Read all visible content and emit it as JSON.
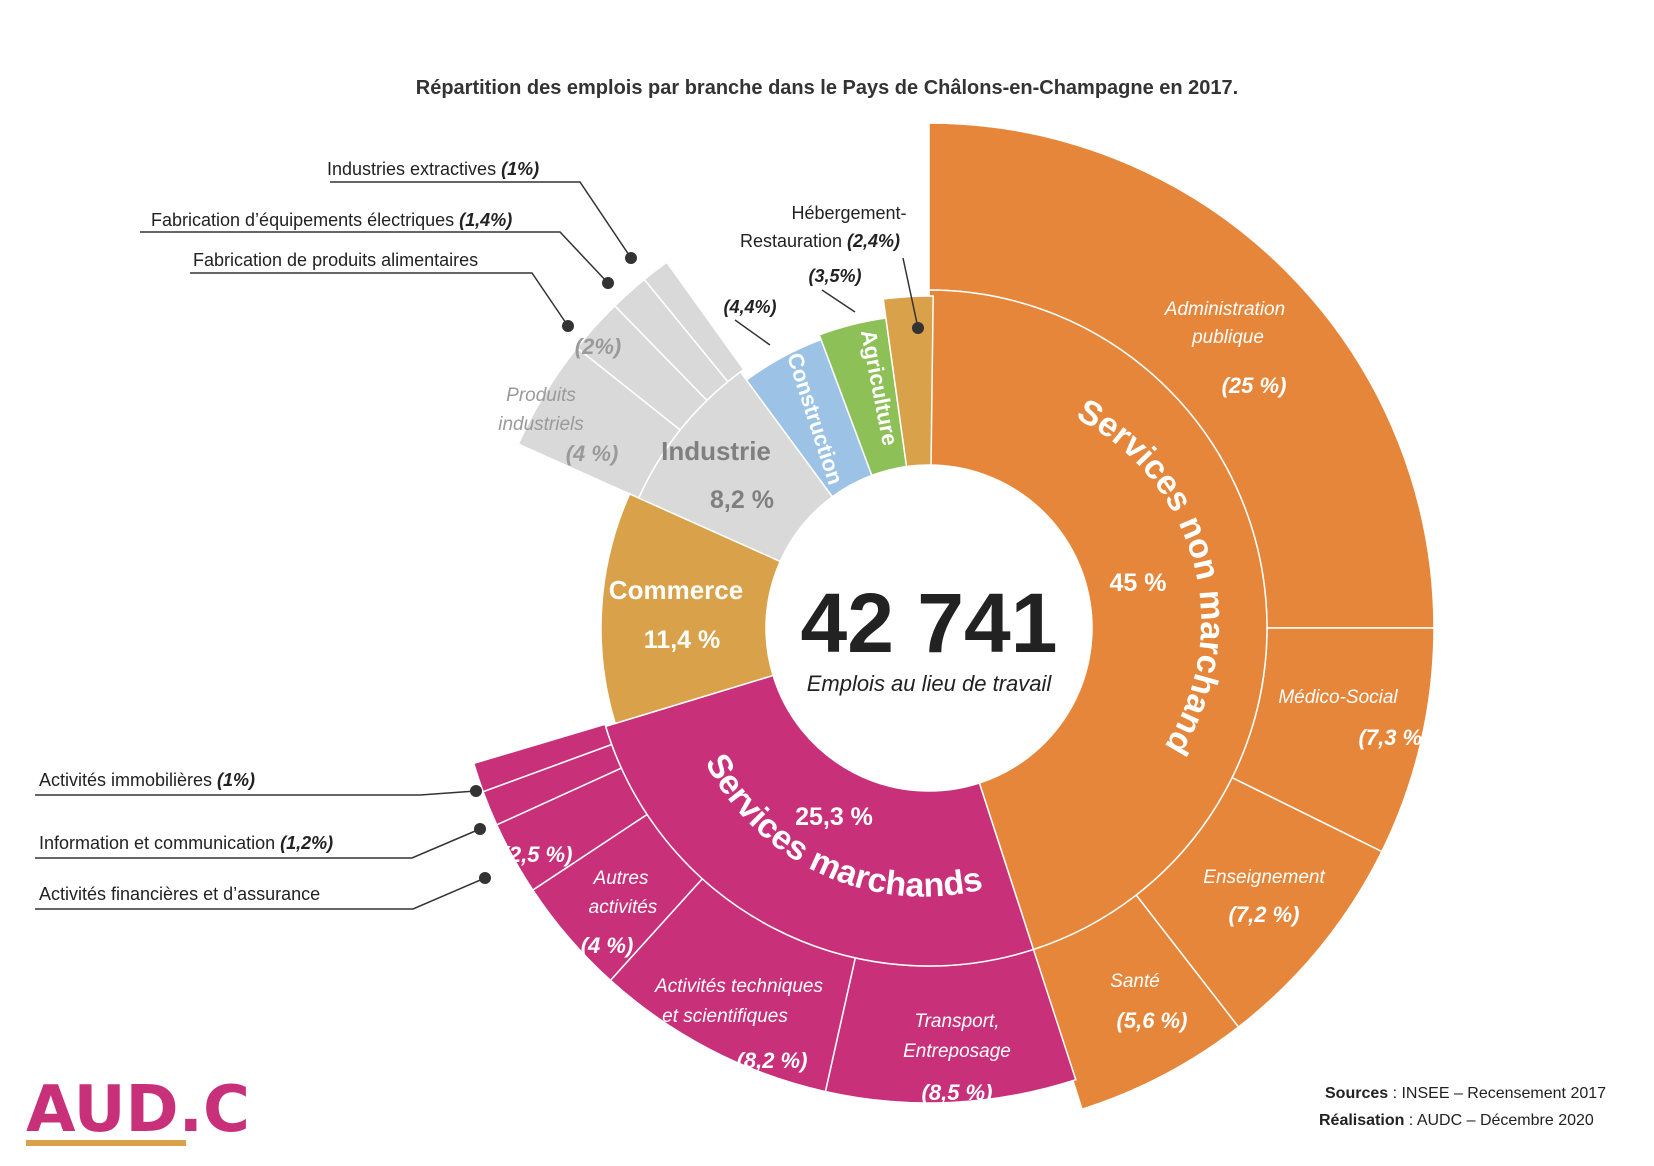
{
  "title": "Répartition des emplois par branche dans le Pays de Châlons-en-Champagne en 2017.",
  "center": {
    "value": "42 741",
    "label": "Emplois au lieu de travail"
  },
  "footer": {
    "sources_label": "Sources",
    "sources_text": " : INSEE – Recensement 2017",
    "realisation_label": "Réalisation",
    "realisation_text": " : AUDC – Décembre 2020"
  },
  "logo": {
    "text": "AUD.C"
  },
  "colors": {
    "orange": "#E5863A",
    "magenta": "#C8317A",
    "gold": "#D9A14A",
    "grey": "#D9D9D9",
    "blue": "#9CC3E6",
    "green": "#8DC158"
  },
  "chart_data": {
    "type": "sunburst",
    "total_jobs": 42741,
    "categories": [
      {
        "name": "Services non marchands",
        "percent_label": "45 %",
        "value": 45,
        "color": "orange",
        "children": [
          {
            "name": "Administration publique",
            "percent_label": "(25 %)",
            "value": 25
          },
          {
            "name": "Médico-Social",
            "percent_label": "(7,3 %)",
            "value": 7.3
          },
          {
            "name": "Enseignement",
            "percent_label": "(7,2 %)",
            "value": 7.2
          },
          {
            "name": "Santé",
            "percent_label": "(5,6 %)",
            "value": 5.6
          }
        ]
      },
      {
        "name": "Services marchands",
        "percent_label": "25,3 %",
        "value": 25.3,
        "color": "magenta",
        "children": [
          {
            "name": "Transport, Entreposage",
            "percent_label": "(8,5 %)",
            "value": 8.5
          },
          {
            "name": "Activités techniques et scientifiques",
            "percent_label": "(8,2 %)",
            "value": 8.2
          },
          {
            "name": "Autres activités",
            "percent_label": "(4 %)",
            "value": 4
          },
          {
            "name": "Activités financières et d’assurance",
            "percent_label": "(2,5 %)",
            "value": 2.5
          },
          {
            "name": "Information et communication",
            "percent_label": "(1,2%)",
            "value": 1.2
          },
          {
            "name": "Activités immobilières",
            "percent_label": "(1%)",
            "value": 1
          }
        ]
      },
      {
        "name": "Commerce",
        "percent_label": "11,4 %",
        "value": 11.4,
        "color": "gold"
      },
      {
        "name": "Industrie",
        "percent_label": "8,2 %",
        "value": 8.2,
        "color": "grey",
        "children": [
          {
            "name": "Produits industriels",
            "percent_label": "(4 %)",
            "value": 4
          },
          {
            "name": "Fabrication de produits alimentaires",
            "percent_label": "(2%)",
            "value": 2
          },
          {
            "name": "Fabrication d’équipements électriques",
            "percent_label": "(1,4%)",
            "value": 1.4
          },
          {
            "name": "Industries extractives",
            "percent_label": "(1%)",
            "value": 1
          }
        ]
      },
      {
        "name": "Construction",
        "percent_label": "(4,4%)",
        "value": 4.4,
        "color": "blue"
      },
      {
        "name": "Agriculture",
        "percent_label": "(3,5%)",
        "value": 3.5,
        "color": "green"
      },
      {
        "name": "Hébergement-Restauration",
        "percent_label": "(2,4%)",
        "value": 2.4,
        "color": "gold"
      }
    ],
    "labels": {
      "sub_admin_1": "Administration",
      "sub_admin_2": "publique",
      "sub_medico": "Médico-Social",
      "sub_ens": "Enseignement",
      "sub_sante": "Santé",
      "sub_transport_1": "Transport,",
      "sub_transport_2": "Entreposage",
      "sub_tech_1": "Activités techniques",
      "sub_tech_2": "et scientifiques",
      "sub_autres_1": "Autres",
      "sub_autres_2": "activités",
      "sub_prod_1": "Produits",
      "sub_prod_2": "industriels",
      "ext_extractives": "Industries extractives ",
      "ext_electriques": "Fabrication d’équipements électriques ",
      "ext_alimentaires": "Fabrication de produits alimentaires",
      "ext_immobilieres": "Activités immobilières ",
      "ext_info": "Information et communication ",
      "ext_financieres": "Activités financières et d’assurance",
      "ext_heb_1": "Hébergement-",
      "ext_heb_2": "Restauration "
    }
  }
}
